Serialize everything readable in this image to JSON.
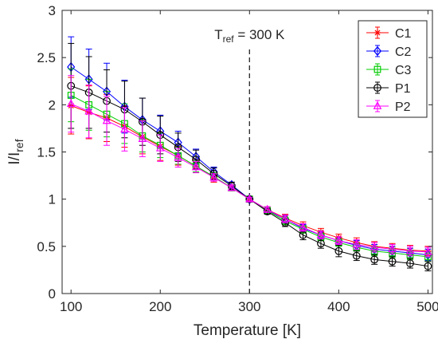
{
  "chart_data": {
    "type": "line",
    "xlabel": "Temperature [K]",
    "ylabel": {
      "main": "I/I",
      "sub": "ref"
    },
    "xlim": [
      90,
      505
    ],
    "ylim": [
      0,
      3
    ],
    "xticks": [
      100,
      200,
      300,
      400,
      500
    ],
    "yticks": [
      0,
      0.5,
      1,
      1.5,
      2,
      2.5,
      3
    ],
    "ytick_labels": [
      "0",
      "0.5",
      "1",
      "1.5",
      "2",
      "2.5",
      "3"
    ],
    "grid": false,
    "legend_position": "top-right",
    "annotation": {
      "prefix": "T",
      "sub": "ref",
      "suffix": " = 300 K",
      "x": 300
    },
    "x": [
      100,
      120,
      140,
      160,
      180,
      200,
      220,
      240,
      260,
      280,
      300,
      320,
      340,
      360,
      380,
      400,
      420,
      440,
      460,
      480,
      500
    ],
    "series": [
      {
        "name": "C1",
        "color": "#ff0000",
        "marker": "asterisk",
        "values": [
          1.99,
          1.92,
          1.86,
          1.77,
          1.66,
          1.56,
          1.46,
          1.35,
          1.23,
          1.12,
          1.0,
          0.89,
          0.8,
          0.72,
          0.65,
          0.59,
          0.54,
          0.5,
          0.48,
          0.46,
          0.45
        ],
        "errors": [
          0.3,
          0.28,
          0.25,
          0.22,
          0.18,
          0.15,
          0.1,
          0.07,
          0.05,
          0.03,
          0.02,
          0.03,
          0.04,
          0.04,
          0.04,
          0.04,
          0.05,
          0.05,
          0.05,
          0.05,
          0.05
        ]
      },
      {
        "name": "C2",
        "color": "#0000ff",
        "marker": "diamond",
        "values": [
          2.4,
          2.27,
          2.14,
          1.98,
          1.84,
          1.72,
          1.6,
          1.45,
          1.29,
          1.15,
          1.0,
          0.88,
          0.79,
          0.69,
          0.62,
          0.56,
          0.51,
          0.47,
          0.45,
          0.43,
          0.41
        ],
        "errors": [
          0.32,
          0.32,
          0.3,
          0.28,
          0.23,
          0.17,
          0.12,
          0.08,
          0.05,
          0.03,
          0.02,
          0.03,
          0.04,
          0.04,
          0.04,
          0.04,
          0.05,
          0.05,
          0.05,
          0.05,
          0.06
        ]
      },
      {
        "name": "C3",
        "color": "#00cc00",
        "marker": "square",
        "values": [
          2.1,
          2.0,
          1.9,
          1.8,
          1.67,
          1.57,
          1.46,
          1.35,
          1.24,
          1.12,
          1.0,
          0.88,
          0.77,
          0.68,
          0.6,
          0.54,
          0.49,
          0.45,
          0.43,
          0.41,
          0.39
        ],
        "errors": [
          0.28,
          0.27,
          0.24,
          0.21,
          0.17,
          0.13,
          0.09,
          0.06,
          0.04,
          0.03,
          0.02,
          0.03,
          0.04,
          0.04,
          0.04,
          0.04,
          0.04,
          0.05,
          0.05,
          0.05,
          0.05
        ]
      },
      {
        "name": "P1",
        "color": "#000000",
        "marker": "circle",
        "values": [
          2.2,
          2.13,
          2.04,
          1.95,
          1.82,
          1.68,
          1.55,
          1.42,
          1.27,
          1.14,
          1.0,
          0.87,
          0.75,
          0.62,
          0.53,
          0.45,
          0.4,
          0.36,
          0.34,
          0.32,
          0.29
        ],
        "errors": [
          0.45,
          0.38,
          0.33,
          0.3,
          0.25,
          0.2,
          0.15,
          0.1,
          0.06,
          0.04,
          0.02,
          0.03,
          0.04,
          0.05,
          0.05,
          0.06,
          0.05,
          0.05,
          0.05,
          0.05,
          0.05
        ]
      },
      {
        "name": "P2",
        "color": "#ff00ff",
        "marker": "triangle",
        "values": [
          2.01,
          1.93,
          1.83,
          1.74,
          1.64,
          1.54,
          1.44,
          1.34,
          1.23,
          1.12,
          1.0,
          0.89,
          0.79,
          0.7,
          0.62,
          0.56,
          0.52,
          0.49,
          0.47,
          0.45,
          0.44
        ],
        "errors": [
          0.3,
          0.28,
          0.26,
          0.23,
          0.19,
          0.14,
          0.1,
          0.06,
          0.04,
          0.03,
          0.02,
          0.03,
          0.04,
          0.04,
          0.04,
          0.04,
          0.05,
          0.05,
          0.05,
          0.05,
          0.05
        ]
      }
    ]
  }
}
